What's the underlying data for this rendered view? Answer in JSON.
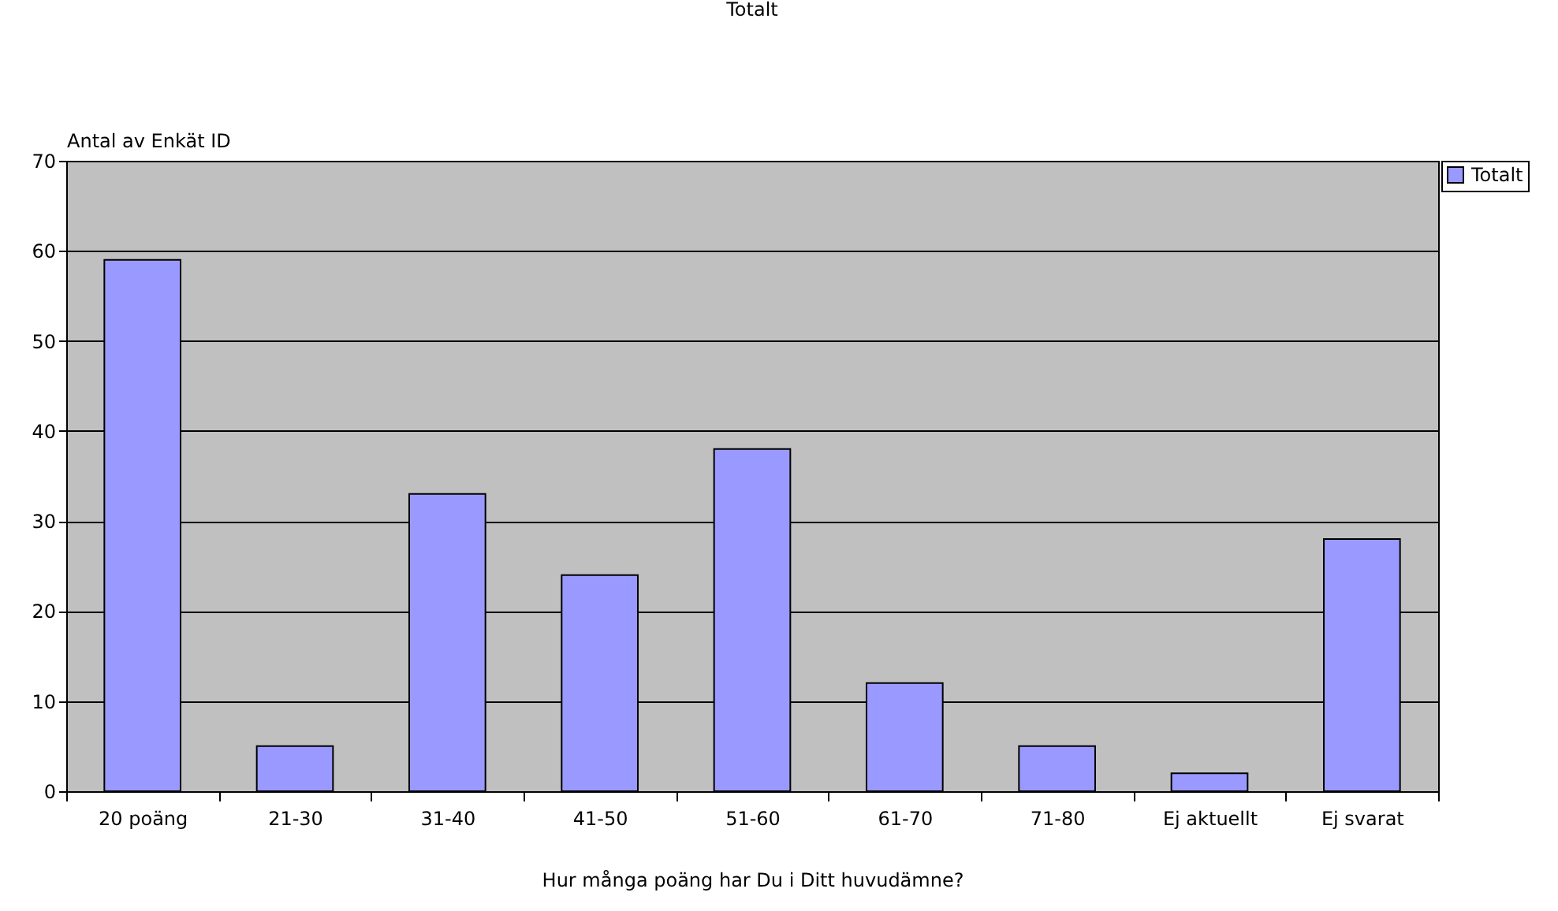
{
  "chart_data": {
    "type": "bar",
    "title": "Totalt",
    "xlabel": "Hur många poäng har Du i Ditt huvudämne?",
    "ylabel": "Antal av Enkät ID",
    "categories": [
      "20 poäng",
      "21-30",
      "31-40",
      "41-50",
      "51-60",
      "61-70",
      "71-80",
      "Ej aktuellt",
      "Ej svarat"
    ],
    "series": [
      {
        "name": "Totalt",
        "color": "#9999ff",
        "values": [
          59,
          5,
          33,
          24,
          38,
          12,
          5,
          2,
          28
        ]
      }
    ],
    "ylim": [
      0,
      70
    ],
    "yticks": [
      0,
      10,
      20,
      30,
      40,
      50,
      60,
      70
    ],
    "grid": "y",
    "legend": "right"
  }
}
